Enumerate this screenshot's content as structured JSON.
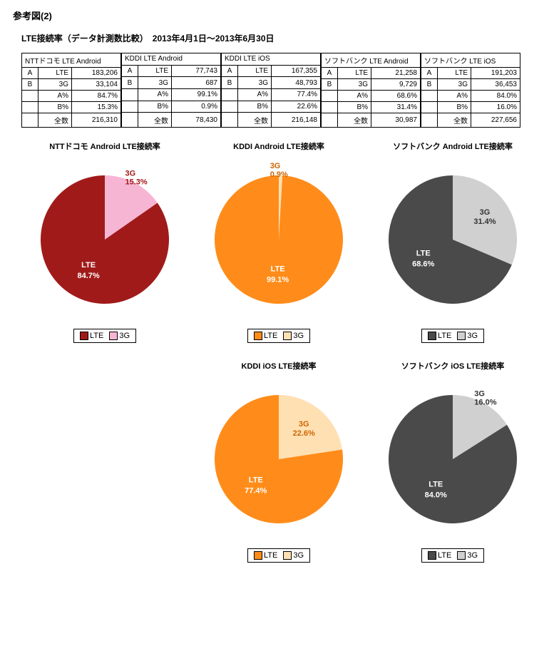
{
  "page": {
    "reference_title": "参考図(2)",
    "main_title": "LTE接続率（データ計測数比較）　2013年4月1日～2013年6月30日"
  },
  "row_labels": {
    "A": "A",
    "B": "B",
    "LTE": "LTE",
    "G3": "3G",
    "Apct": "A%",
    "Bpct": "B%",
    "total": "全数"
  },
  "tables": [
    {
      "header": "NTTドコモ LTE Android",
      "lte": "183,206",
      "g3": "33,104",
      "a_pct": "84.7%",
      "b_pct": "15.3%",
      "total": "216,310"
    },
    {
      "header": "KDDI LTE Android",
      "lte": "77,743",
      "g3": "687",
      "a_pct": "99.1%",
      "b_pct": "0.9%",
      "total": "78,430"
    },
    {
      "header": "KDDI LTE iOS",
      "lte": "167,355",
      "g3": "48,793",
      "a_pct": "77.4%",
      "b_pct": "22.6%",
      "total": "216,148"
    },
    {
      "header": "ソフトバンク LTE Android",
      "lte": "21,258",
      "g3": "9,729",
      "a_pct": "68.6%",
      "b_pct": "31.4%",
      "total": "30,987"
    },
    {
      "header": "ソフトバンク LTE iOS",
      "lte": "191,203",
      "g3": "36,453",
      "a_pct": "84.0%",
      "b_pct": "16.0%",
      "total": "227,656"
    }
  ],
  "charts": {
    "type": "pie",
    "radius": 90,
    "label_lte": "LTE",
    "label_3g": "3G",
    "items": [
      {
        "id": "docomo-android",
        "grid": 0,
        "title": "NTTドコモ Android LTE接続率",
        "lte_pct": 84.7,
        "g3_pct": 15.3,
        "lte_color": "#a11a1a",
        "g3_color": "#f7b5d4",
        "lte_text_color": "#ffffff",
        "g3_text_color": "#a11a1a",
        "g3_label_outside": true
      },
      {
        "id": "kddi-android",
        "grid": 1,
        "title": "KDDI Android LTE接続率",
        "lte_pct": 99.1,
        "g3_pct": 0.9,
        "lte_color": "#ff8c1a",
        "g3_color": "#ffe0b3",
        "lte_text_color": "#ffffff",
        "g3_text_color": "#cc6600",
        "g3_label_outside": true
      },
      {
        "id": "softbank-android",
        "grid": 2,
        "title": "ソフトバンク Android LTE接続率",
        "lte_pct": 68.6,
        "g3_pct": 31.4,
        "lte_color": "#4a4a4a",
        "g3_color": "#d0d0d0",
        "lte_text_color": "#ffffff",
        "g3_text_color": "#333333",
        "g3_label_outside": false
      },
      {
        "id": "kddi-ios",
        "grid": 4,
        "title": "KDDI iOS LTE接続率",
        "lte_pct": 77.4,
        "g3_pct": 22.6,
        "lte_color": "#ff8c1a",
        "g3_color": "#ffe0b3",
        "lte_text_color": "#ffffff",
        "g3_text_color": "#cc6600",
        "g3_label_outside": false
      },
      {
        "id": "softbank-ios",
        "grid": 5,
        "title": "ソフトバンク iOS LTE接続率",
        "lte_pct": 84.0,
        "g3_pct": 16.0,
        "lte_color": "#4a4a4a",
        "g3_color": "#d0d0d0",
        "lte_text_color": "#ffffff",
        "g3_text_color": "#333333",
        "g3_label_outside": true
      }
    ]
  }
}
